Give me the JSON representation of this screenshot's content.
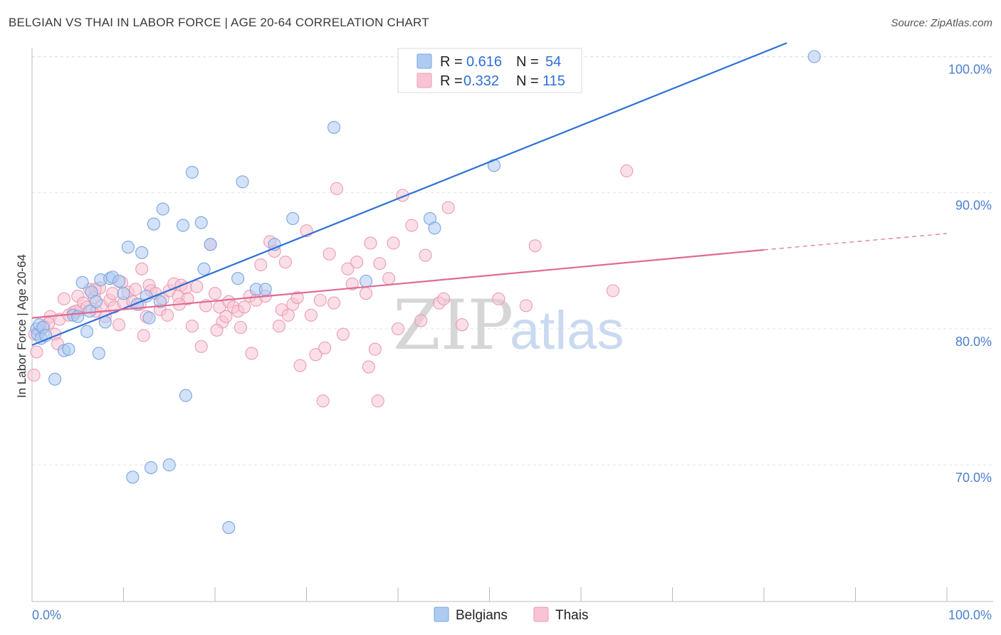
{
  "title": "BELGIAN VS THAI IN LABOR FORCE | AGE 20-64 CORRELATION CHART",
  "source": "Source: ZipAtlas.com",
  "watermark": {
    "part1": "ZIP",
    "part2": "atlas"
  },
  "legend": {
    "rows": [
      {
        "r_label": "R =",
        "r_value": "0.616",
        "n_label": "N =",
        "n_value": "54"
      },
      {
        "r_label": "R =",
        "r_value": "0.332",
        "n_label": "N =",
        "n_value": "115"
      }
    ]
  },
  "bottom_legend": [
    "Belgians",
    "Thais"
  ],
  "colors": {
    "blue_fill": "#aecbf2",
    "blue_stroke": "#7aa6e0",
    "blue_line": "#2f6fd6",
    "pink_fill": "#f8c4d4",
    "pink_stroke": "#ec9bb6",
    "pink_line": "#e06a93",
    "tick_text": "#4a7fd0",
    "grid": "#e4e4e4"
  },
  "chart_data": {
    "type": "scatter",
    "title": "BELGIAN VS THAI IN LABOR FORCE | AGE 20-64 CORRELATION CHART",
    "xlabel": "",
    "ylabel": "In Labor Force | Age 20-64",
    "xlim": [
      0,
      100
    ],
    "ylim": [
      60.5,
      101
    ],
    "x_tick_labels": [
      "0.0%",
      "100.0%"
    ],
    "y_ticks": [
      70,
      80,
      90,
      100
    ],
    "y_tick_labels": [
      "70.0%",
      "80.0%",
      "90.0%",
      "100.0%"
    ],
    "grid": true,
    "legend_position": "top-center",
    "series": [
      {
        "name": "Belgians",
        "r": 0.616,
        "n": 54,
        "trend": {
          "x": [
            0,
            82.5
          ],
          "y": [
            78.8,
            101.0
          ],
          "dashed_to": null
        },
        "points": [
          [
            0.5,
            80.0
          ],
          [
            0.6,
            79.6
          ],
          [
            0.8,
            80.3
          ],
          [
            1.0,
            79.3
          ],
          [
            1.2,
            80.1
          ],
          [
            1.5,
            79.5
          ],
          [
            2.5,
            76.3
          ],
          [
            3.5,
            78.4
          ],
          [
            4.0,
            78.5
          ],
          [
            4.5,
            81.0
          ],
          [
            5.0,
            80.9
          ],
          [
            5.5,
            83.4
          ],
          [
            6.0,
            79.8
          ],
          [
            6.3,
            81.3
          ],
          [
            6.5,
            82.7
          ],
          [
            7.0,
            82.0
          ],
          [
            7.3,
            78.2
          ],
          [
            7.5,
            83.6
          ],
          [
            8.0,
            80.5
          ],
          [
            8.5,
            83.7
          ],
          [
            8.8,
            83.8
          ],
          [
            9.5,
            83.5
          ],
          [
            10.0,
            82.6
          ],
          [
            10.5,
            86.0
          ],
          [
            11.0,
            69.1
          ],
          [
            11.5,
            81.8
          ],
          [
            12.0,
            85.6
          ],
          [
            12.5,
            82.4
          ],
          [
            12.8,
            80.8
          ],
          [
            13.0,
            69.8
          ],
          [
            13.3,
            87.7
          ],
          [
            14.0,
            82.0
          ],
          [
            14.3,
            88.8
          ],
          [
            15.0,
            70.0
          ],
          [
            16.5,
            87.6
          ],
          [
            16.8,
            75.1
          ],
          [
            17.5,
            91.5
          ],
          [
            18.5,
            87.8
          ],
          [
            18.8,
            84.4
          ],
          [
            19.5,
            86.2
          ],
          [
            21.5,
            65.4
          ],
          [
            22.5,
            83.7
          ],
          [
            23.0,
            90.8
          ],
          [
            24.5,
            82.9
          ],
          [
            25.5,
            82.9
          ],
          [
            26.5,
            86.2
          ],
          [
            28.5,
            88.1
          ],
          [
            33.0,
            94.8
          ],
          [
            36.5,
            83.5
          ],
          [
            43.5,
            88.1
          ],
          [
            44.0,
            87.4
          ],
          [
            49.0,
            99.9
          ],
          [
            50.5,
            92.0
          ],
          [
            85.5,
            100.0
          ]
        ]
      },
      {
        "name": "Thais",
        "r": 0.332,
        "n": 115,
        "trend": {
          "x": [
            0,
            80.0
          ],
          "y": [
            80.8,
            85.8
          ],
          "dashed_to": {
            "x": 100,
            "y": 87.0
          }
        },
        "points": [
          [
            0.2,
            76.6
          ],
          [
            0.5,
            78.3
          ],
          [
            0.8,
            79.8
          ],
          [
            1.3,
            80.2
          ],
          [
            2.0,
            80.9
          ],
          [
            2.5,
            79.6
          ],
          [
            3.0,
            80.7
          ],
          [
            3.5,
            82.2
          ],
          [
            4.0,
            81.0
          ],
          [
            4.5,
            81.2
          ],
          [
            5.0,
            82.4
          ],
          [
            5.3,
            81.4
          ],
          [
            5.6,
            81.9
          ],
          [
            6.0,
            81.6
          ],
          [
            6.3,
            82.9
          ],
          [
            6.8,
            82.3
          ],
          [
            7.0,
            81.3
          ],
          [
            7.4,
            83.0
          ],
          [
            7.6,
            81.7
          ],
          [
            8.0,
            80.9
          ],
          [
            8.5,
            82.1
          ],
          [
            8.8,
            82.6
          ],
          [
            9.0,
            81.6
          ],
          [
            9.5,
            80.3
          ],
          [
            9.8,
            83.4
          ],
          [
            10.0,
            81.9
          ],
          [
            10.5,
            82.7
          ],
          [
            11.0,
            82.0
          ],
          [
            11.3,
            82.9
          ],
          [
            11.8,
            81.8
          ],
          [
            12.0,
            84.4
          ],
          [
            12.5,
            80.9
          ],
          [
            12.8,
            83.2
          ],
          [
            13.0,
            82.8
          ],
          [
            13.5,
            82.6
          ],
          [
            14.0,
            81.4
          ],
          [
            14.3,
            82.2
          ],
          [
            14.8,
            81.0
          ],
          [
            15.0,
            82.8
          ],
          [
            15.5,
            83.3
          ],
          [
            16.0,
            82.4
          ],
          [
            16.3,
            83.2
          ],
          [
            16.8,
            83.0
          ],
          [
            17.0,
            82.2
          ],
          [
            17.5,
            80.2
          ],
          [
            18.0,
            83.1
          ],
          [
            18.5,
            78.7
          ],
          [
            19.0,
            81.7
          ],
          [
            19.5,
            86.2
          ],
          [
            20.0,
            82.6
          ],
          [
            20.5,
            81.6
          ],
          [
            20.8,
            80.5
          ],
          [
            21.2,
            80.9
          ],
          [
            21.5,
            82.0
          ],
          [
            22.0,
            81.6
          ],
          [
            22.5,
            81.3
          ],
          [
            22.8,
            80.1
          ],
          [
            23.2,
            81.6
          ],
          [
            23.8,
            82.4
          ],
          [
            24.0,
            78.2
          ],
          [
            24.5,
            82.1
          ],
          [
            25.0,
            84.7
          ],
          [
            25.5,
            82.4
          ],
          [
            26.0,
            86.4
          ],
          [
            26.5,
            85.7
          ],
          [
            27.0,
            80.2
          ],
          [
            27.3,
            81.4
          ],
          [
            27.7,
            84.9
          ],
          [
            28.0,
            81.0
          ],
          [
            28.5,
            81.8
          ],
          [
            29.0,
            82.3
          ],
          [
            29.3,
            77.3
          ],
          [
            30.0,
            87.2
          ],
          [
            30.5,
            81.0
          ],
          [
            31.0,
            78.1
          ],
          [
            31.5,
            82.1
          ],
          [
            31.8,
            74.7
          ],
          [
            32.0,
            78.6
          ],
          [
            32.5,
            85.5
          ],
          [
            33.0,
            81.9
          ],
          [
            33.3,
            90.3
          ],
          [
            34.0,
            79.6
          ],
          [
            34.5,
            84.4
          ],
          [
            35.0,
            83.3
          ],
          [
            35.5,
            84.9
          ],
          [
            36.5,
            82.6
          ],
          [
            36.8,
            77.2
          ],
          [
            37.0,
            86.3
          ],
          [
            37.5,
            78.5
          ],
          [
            37.8,
            74.7
          ],
          [
            38.0,
            84.8
          ],
          [
            39.0,
            83.7
          ],
          [
            39.5,
            86.3
          ],
          [
            40.0,
            80.0
          ],
          [
            40.5,
            89.8
          ],
          [
            41.5,
            87.6
          ],
          [
            42.5,
            80.6
          ],
          [
            43.0,
            85.4
          ],
          [
            44.5,
            81.9
          ],
          [
            45.0,
            82.2
          ],
          [
            45.5,
            88.9
          ],
          [
            47.0,
            80.3
          ],
          [
            51.0,
            82.2
          ],
          [
            54.0,
            81.7
          ],
          [
            55.0,
            86.1
          ],
          [
            63.5,
            82.8
          ],
          [
            65.0,
            91.6
          ],
          [
            0.3,
            79.6
          ],
          [
            1.8,
            80.4
          ],
          [
            2.8,
            78.9
          ],
          [
            4.8,
            81.3
          ],
          [
            6.9,
            82.9
          ],
          [
            12.2,
            79.5
          ],
          [
            16.1,
            81.8
          ],
          [
            20.2,
            79.9
          ]
        ]
      }
    ]
  }
}
